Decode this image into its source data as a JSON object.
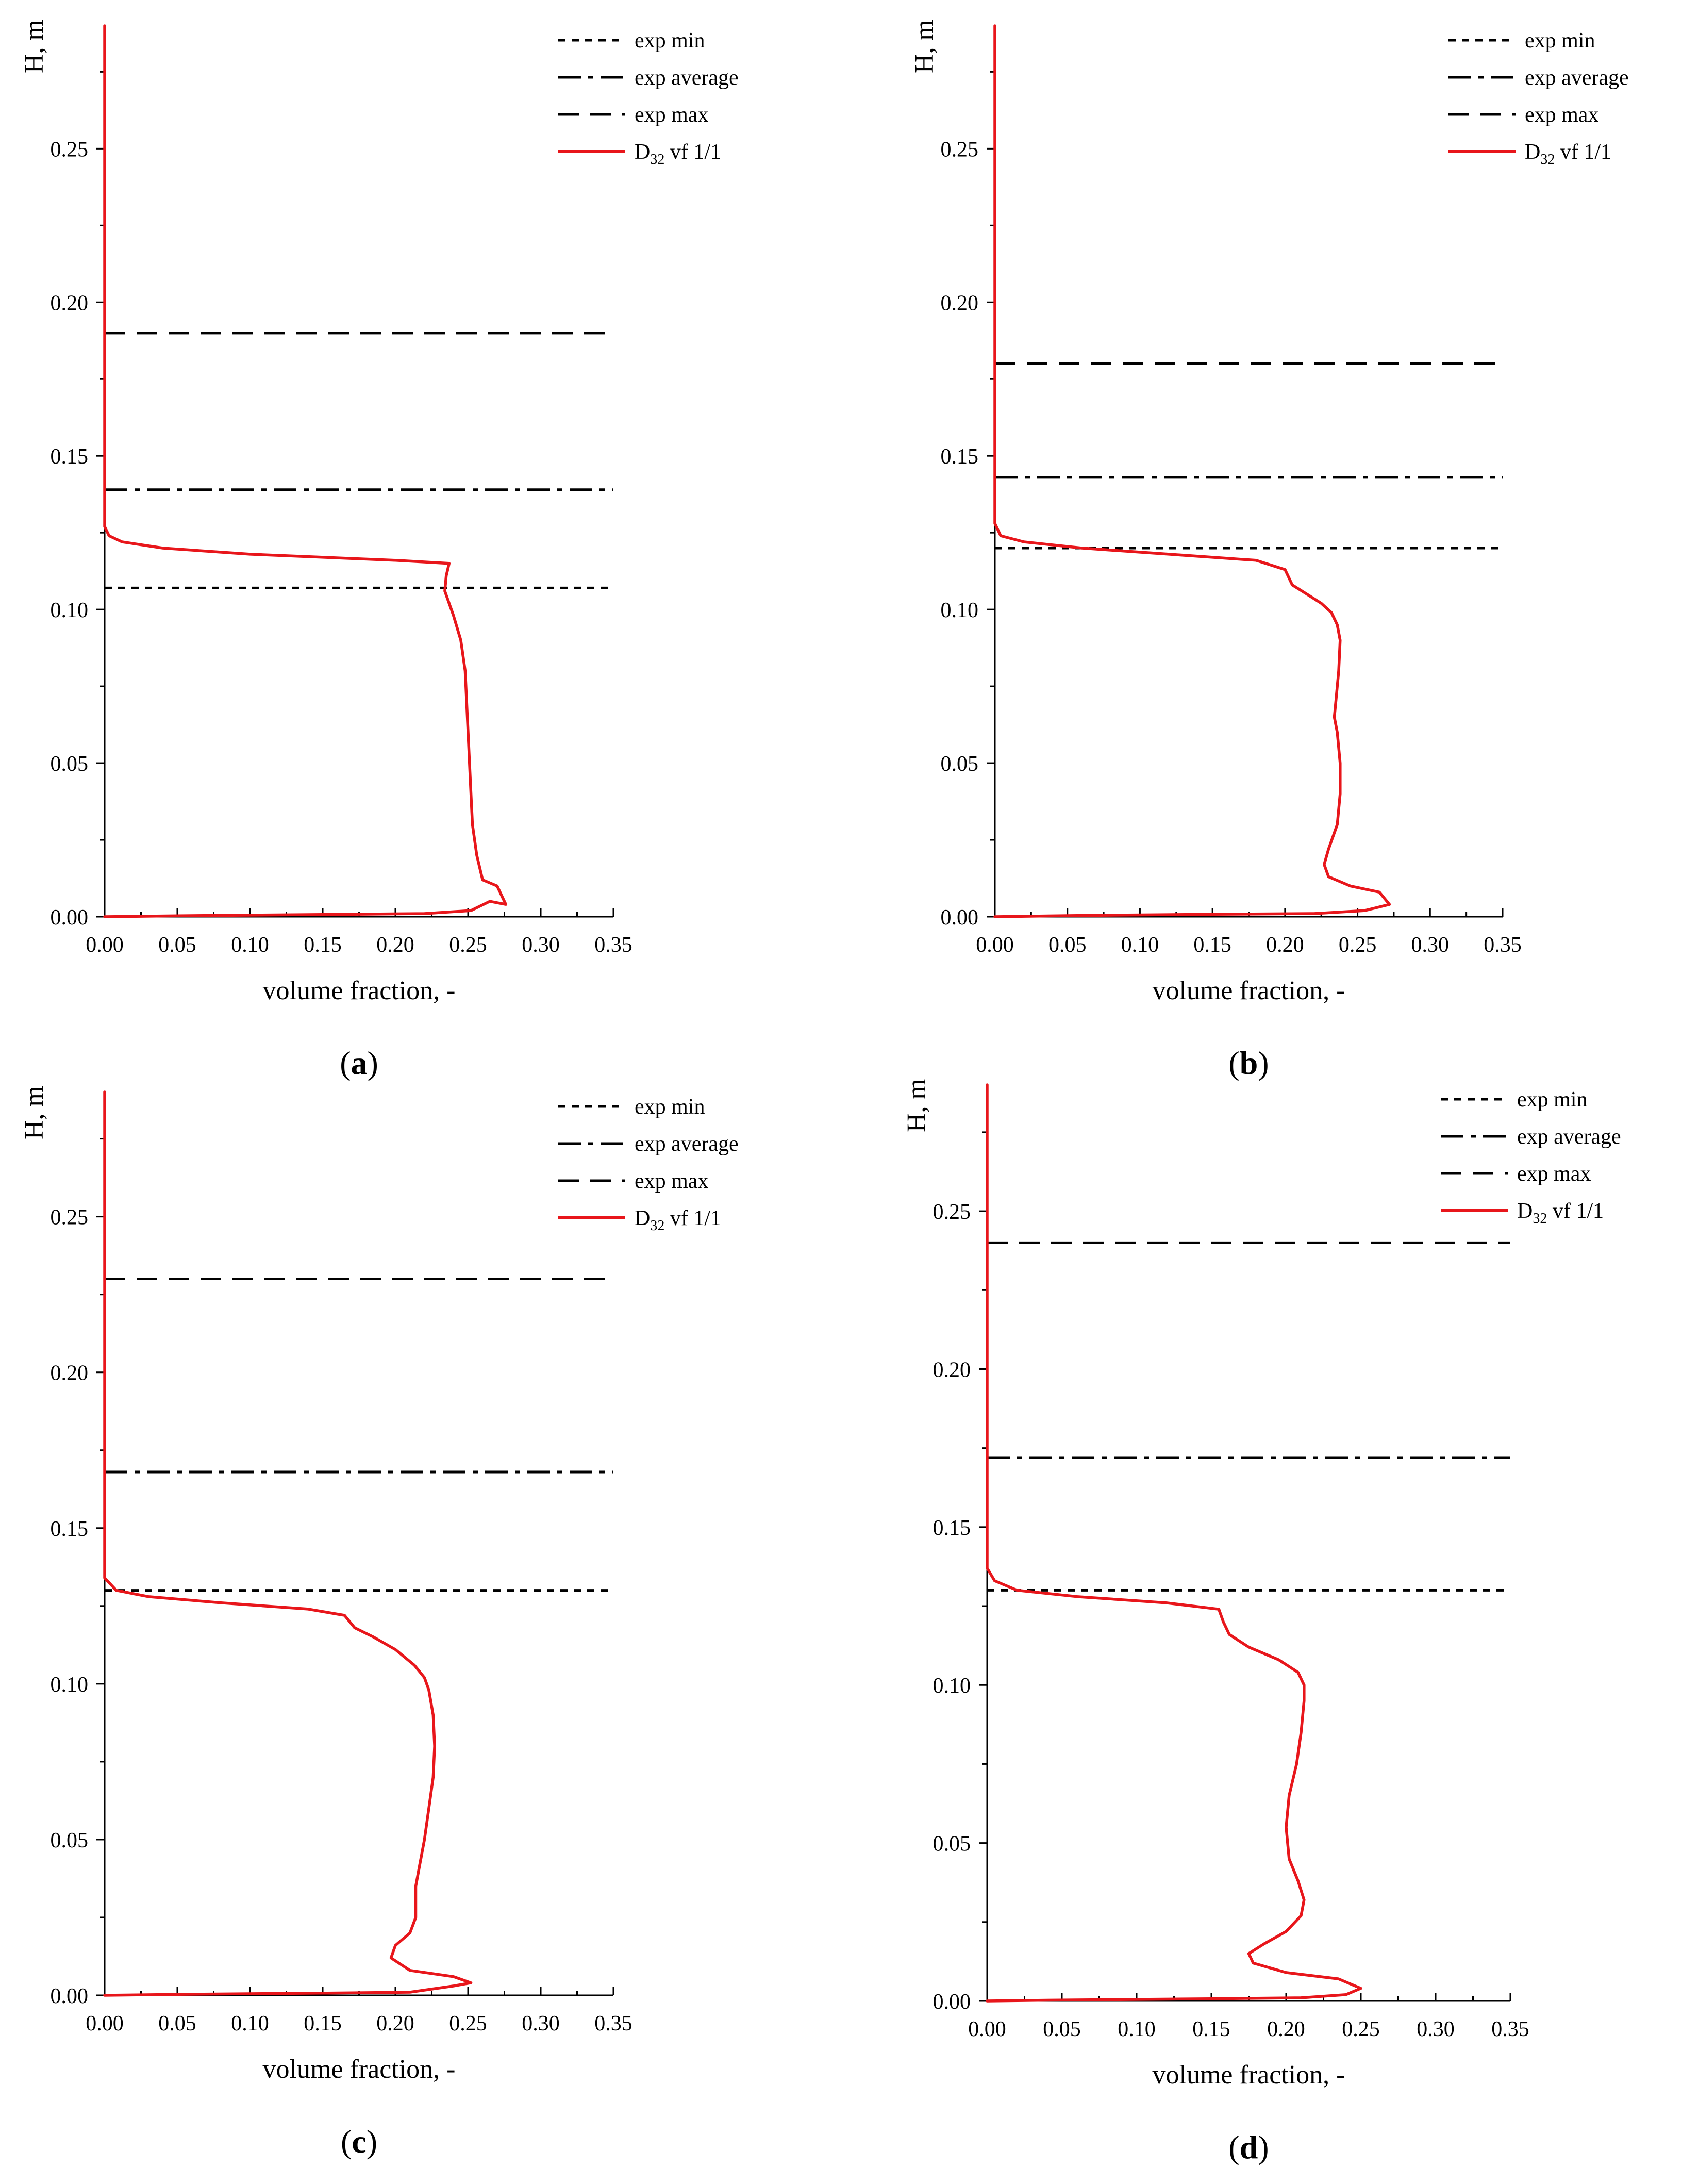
{
  "figure": {
    "legend": {
      "exp_min": "exp min",
      "exp_average": "exp average",
      "exp_max": "exp max",
      "sim_prefix": "D",
      "sim_sub": "32",
      "sim_suffix": " vf 1/1"
    },
    "colors": {
      "axis": "#000000",
      "exp_lines": "#000000",
      "sim": "#e8161b"
    }
  },
  "chart_data": [
    {
      "type": "line",
      "panel": "a",
      "panel_label_open": "(",
      "panel_label_letter": "a",
      "panel_label_close": ")",
      "xlabel": "volume fraction, -",
      "ylabel": "H, m",
      "xlim": [
        0,
        0.35
      ],
      "ylim": [
        0,
        0.29
      ],
      "x_ticks": [
        "0.00",
        "0.05",
        "0.10",
        "0.15",
        "0.20",
        "0.25",
        "0.30",
        "0.35"
      ],
      "y_ticks": [
        "0.00",
        "0.05",
        "0.10",
        "0.15",
        "0.20",
        "0.25"
      ],
      "reference_lines": {
        "exp_min": 0.107,
        "exp_average": 0.139,
        "exp_max": 0.19
      },
      "series": [
        {
          "name": "D32 vf 1/1",
          "x": [
            0.0,
            0.05,
            0.15,
            0.22,
            0.252,
            0.265,
            0.276,
            0.27,
            0.26,
            0.256,
            0.253,
            0.252,
            0.251,
            0.25,
            0.249,
            0.248,
            0.245,
            0.24,
            0.237,
            0.234,
            0.235,
            0.237,
            0.2,
            0.1,
            0.04,
            0.012,
            0.003,
            0.0,
            0.0
          ],
          "y": [
            0.0,
            0.0003,
            0.0007,
            0.001,
            0.002,
            0.005,
            0.004,
            0.01,
            0.012,
            0.02,
            0.03,
            0.04,
            0.05,
            0.06,
            0.07,
            0.08,
            0.09,
            0.098,
            0.102,
            0.106,
            0.111,
            0.115,
            0.116,
            0.118,
            0.12,
            0.122,
            0.124,
            0.127,
            0.29
          ]
        }
      ]
    },
    {
      "type": "line",
      "panel": "b",
      "panel_label_open": "(",
      "panel_label_letter": "b",
      "panel_label_close": ")",
      "xlabel": "volume fraction, -",
      "ylabel": "H, m",
      "xlim": [
        0,
        0.35
      ],
      "ylim": [
        0,
        0.29
      ],
      "x_ticks": [
        "0.00",
        "0.05",
        "0.10",
        "0.15",
        "0.20",
        "0.25",
        "0.30",
        "0.35"
      ],
      "y_ticks": [
        "0.00",
        "0.05",
        "0.10",
        "0.15",
        "0.20",
        "0.25"
      ],
      "reference_lines": {
        "exp_min": 0.12,
        "exp_average": 0.143,
        "exp_max": 0.18
      },
      "series": [
        {
          "name": "D32 vf 1/1",
          "x": [
            0.0,
            0.06,
            0.15,
            0.22,
            0.255,
            0.272,
            0.265,
            0.245,
            0.23,
            0.227,
            0.23,
            0.236,
            0.238,
            0.238,
            0.237,
            0.236,
            0.234,
            0.235,
            0.237,
            0.238,
            0.236,
            0.232,
            0.225,
            0.215,
            0.205,
            0.2,
            0.18,
            0.12,
            0.06,
            0.02,
            0.004,
            0.0,
            0.0
          ],
          "y": [
            0.0,
            0.0004,
            0.0008,
            0.001,
            0.002,
            0.004,
            0.008,
            0.01,
            0.013,
            0.017,
            0.022,
            0.03,
            0.04,
            0.05,
            0.055,
            0.06,
            0.065,
            0.07,
            0.08,
            0.09,
            0.095,
            0.099,
            0.102,
            0.105,
            0.108,
            0.113,
            0.116,
            0.118,
            0.12,
            0.122,
            0.124,
            0.128,
            0.29
          ]
        }
      ]
    },
    {
      "type": "line",
      "panel": "c",
      "panel_label_open": "(",
      "panel_label_letter": "c",
      "panel_label_close": ")",
      "xlabel": "volume fraction, -",
      "ylabel": "H, m",
      "xlim": [
        0,
        0.35
      ],
      "ylim": [
        0,
        0.29
      ],
      "x_ticks": [
        "0.00",
        "0.05",
        "0.10",
        "0.15",
        "0.20",
        "0.25",
        "0.30",
        "0.35"
      ],
      "y_ticks": [
        "0.00",
        "0.05",
        "0.10",
        "0.15",
        "0.20",
        "0.25"
      ],
      "reference_lines": {
        "exp_min": 0.13,
        "exp_average": 0.168,
        "exp_max": 0.23
      },
      "series": [
        {
          "name": "D32 vf 1/1",
          "x": [
            0.0,
            0.05,
            0.15,
            0.21,
            0.24,
            0.252,
            0.24,
            0.21,
            0.197,
            0.2,
            0.21,
            0.214,
            0.214,
            0.216,
            0.22,
            0.223,
            0.226,
            0.227,
            0.226,
            0.223,
            0.22,
            0.213,
            0.2,
            0.185,
            0.172,
            0.165,
            0.14,
            0.08,
            0.03,
            0.008,
            0.0,
            0.0
          ],
          "y": [
            0.0,
            0.0003,
            0.0007,
            0.001,
            0.003,
            0.004,
            0.006,
            0.008,
            0.012,
            0.016,
            0.02,
            0.025,
            0.035,
            0.04,
            0.05,
            0.06,
            0.07,
            0.08,
            0.09,
            0.098,
            0.102,
            0.106,
            0.111,
            0.115,
            0.118,
            0.122,
            0.124,
            0.126,
            0.128,
            0.13,
            0.134,
            0.29
          ]
        }
      ]
    },
    {
      "type": "line",
      "panel": "d",
      "panel_label_open": "(",
      "panel_label_letter": "d",
      "panel_label_close": ")",
      "xlabel": "volume fraction, -",
      "ylabel": "H, m",
      "xlim": [
        0,
        0.35
      ],
      "ylim": [
        0,
        0.29
      ],
      "x_ticks": [
        "0.00",
        "0.05",
        "0.10",
        "0.15",
        "0.20",
        "0.25",
        "0.30",
        "0.35"
      ],
      "y_ticks": [
        "0.00",
        "0.05",
        "0.10",
        "0.15",
        "0.20",
        "0.25"
      ],
      "reference_lines": {
        "exp_min": 0.13,
        "exp_average": 0.172,
        "exp_max": 0.24
      },
      "series": [
        {
          "name": "D32 vf 1/1",
          "x": [
            0.0,
            0.05,
            0.15,
            0.21,
            0.24,
            0.25,
            0.235,
            0.2,
            0.178,
            0.175,
            0.185,
            0.2,
            0.21,
            0.212,
            0.208,
            0.202,
            0.2,
            0.202,
            0.207,
            0.21,
            0.212,
            0.212,
            0.208,
            0.195,
            0.175,
            0.162,
            0.158,
            0.155,
            0.12,
            0.06,
            0.02,
            0.005,
            0.0,
            0.0
          ],
          "y": [
            0.0,
            0.0003,
            0.0007,
            0.001,
            0.002,
            0.004,
            0.007,
            0.009,
            0.012,
            0.015,
            0.018,
            0.022,
            0.027,
            0.032,
            0.038,
            0.045,
            0.055,
            0.065,
            0.075,
            0.085,
            0.095,
            0.1,
            0.104,
            0.108,
            0.112,
            0.116,
            0.12,
            0.124,
            0.126,
            0.128,
            0.13,
            0.133,
            0.137,
            0.29
          ]
        }
      ]
    }
  ]
}
